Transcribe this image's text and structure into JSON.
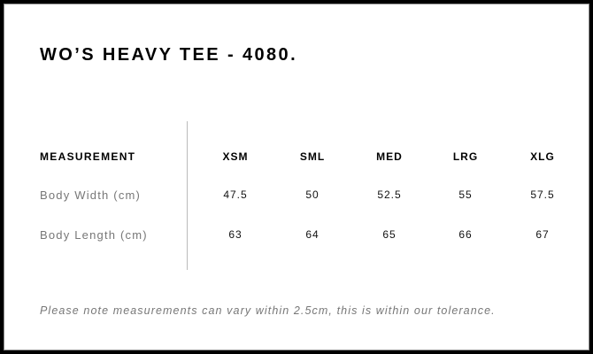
{
  "title": "WO’S HEAVY TEE - 4080.",
  "table": {
    "header_label": "MEASUREMENT",
    "sizes": [
      "XSM",
      "SML",
      "MED",
      "LRG",
      "XLG"
    ],
    "rows": [
      {
        "label": "Body Width (cm)",
        "values": [
          "47.5",
          "50",
          "52.5",
          "55",
          "57.5"
        ]
      },
      {
        "label": "Body Length (cm)",
        "values": [
          "63",
          "64",
          "65",
          "66",
          "67"
        ]
      }
    ]
  },
  "note": "Please note measurements can vary within 2.5cm, this is within our tolerance."
}
